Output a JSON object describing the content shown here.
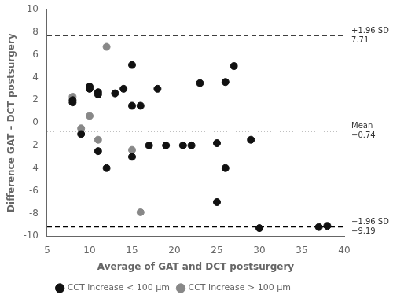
{
  "chart_data": {
    "type": "scatter",
    "xlabel": "Average of GAT and DCT postsurgery",
    "ylabel": "Difference GAT – DCT postsurgery",
    "xlim": [
      5,
      40
    ],
    "ylim": [
      -10,
      10
    ],
    "xticks": [
      5,
      10,
      15,
      20,
      25,
      30,
      35,
      40
    ],
    "yticks": [
      -10,
      -8,
      -6,
      -4,
      -2,
      0,
      2,
      4,
      6,
      8,
      10
    ],
    "grid": false,
    "legend": "bottom",
    "marker": "circle",
    "series": [
      {
        "name": "CCT increase < 100 μm",
        "color": "#111111",
        "x": [
          8,
          8,
          9,
          10,
          10,
          11,
          11,
          11,
          12,
          13,
          14,
          15,
          15,
          15,
          16,
          17,
          18,
          19,
          21,
          22,
          23,
          25,
          25,
          26,
          26,
          27,
          29,
          30,
          37,
          38
        ],
        "values": [
          2.0,
          1.8,
          -1.0,
          3.2,
          3.0,
          2.7,
          2.5,
          -2.5,
          -4.0,
          2.6,
          3.0,
          5.1,
          1.5,
          -3.0,
          1.5,
          -2.0,
          3.0,
          -2.0,
          -2.0,
          -2.0,
          3.5,
          -1.8,
          -7.0,
          3.6,
          -4.0,
          5.0,
          -1.5,
          -9.3,
          -9.2,
          -9.1
        ]
      },
      {
        "name": "CCT increase > 100 μm",
        "color": "#888888",
        "x": [
          8,
          9,
          10,
          11,
          12,
          15,
          16
        ],
        "values": [
          2.3,
          -0.5,
          0.6,
          -1.5,
          6.7,
          -2.4,
          -7.9
        ]
      }
    ],
    "reference_lines": [
      {
        "value": -0.74,
        "label": "Mean",
        "value_label": "−0.74",
        "line_style": "dotted",
        "color": "#000000"
      },
      {
        "value": 7.71,
        "label": "+1.96 SD",
        "value_label": "7.71",
        "line_style": "dashed",
        "color": "#000000"
      },
      {
        "value": -9.19,
        "label": "−1.96 SD",
        "value_label": "−9.19",
        "line_style": "dashed",
        "color": "#000000"
      }
    ]
  }
}
